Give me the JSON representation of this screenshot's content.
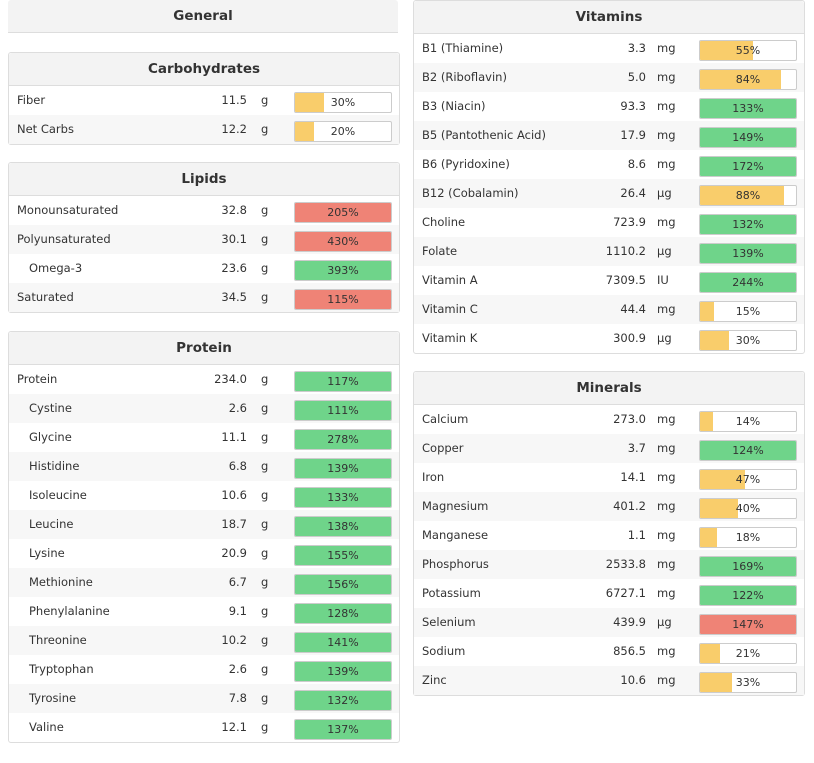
{
  "general": {
    "title": "General"
  },
  "left_sections": [
    {
      "id": "carbohydrates",
      "title": "Carbohydrates",
      "rows": [
        {
          "name": "Fiber",
          "amount": "11.5",
          "unit": "g",
          "pct": "30%",
          "level": 0.3,
          "color": "yellow",
          "indent": false
        },
        {
          "name": "Net Carbs",
          "amount": "12.2",
          "unit": "g",
          "pct": "20%",
          "level": 0.2,
          "color": "yellow",
          "indent": false
        }
      ]
    },
    {
      "id": "lipids",
      "title": "Lipids",
      "rows": [
        {
          "name": "Monounsaturated",
          "amount": "32.8",
          "unit": "g",
          "pct": "205%",
          "level": 1,
          "color": "red",
          "indent": false
        },
        {
          "name": "Polyunsaturated",
          "amount": "30.1",
          "unit": "g",
          "pct": "430%",
          "level": 1,
          "color": "red",
          "indent": false
        },
        {
          "name": "Omega-3",
          "amount": "23.6",
          "unit": "g",
          "pct": "393%",
          "level": 1,
          "color": "green",
          "indent": true
        },
        {
          "name": "Saturated",
          "amount": "34.5",
          "unit": "g",
          "pct": "115%",
          "level": 1,
          "color": "red",
          "indent": false
        }
      ]
    },
    {
      "id": "protein",
      "title": "Protein",
      "rows": [
        {
          "name": "Protein",
          "amount": "234.0",
          "unit": "g",
          "pct": "117%",
          "level": 1,
          "color": "green",
          "indent": false
        },
        {
          "name": "Cystine",
          "amount": "2.6",
          "unit": "g",
          "pct": "111%",
          "level": 1,
          "color": "green",
          "indent": true
        },
        {
          "name": "Glycine",
          "amount": "11.1",
          "unit": "g",
          "pct": "278%",
          "level": 1,
          "color": "green",
          "indent": true
        },
        {
          "name": "Histidine",
          "amount": "6.8",
          "unit": "g",
          "pct": "139%",
          "level": 1,
          "color": "green",
          "indent": true
        },
        {
          "name": "Isoleucine",
          "amount": "10.6",
          "unit": "g",
          "pct": "133%",
          "level": 1,
          "color": "green",
          "indent": true
        },
        {
          "name": "Leucine",
          "amount": "18.7",
          "unit": "g",
          "pct": "138%",
          "level": 1,
          "color": "green",
          "indent": true
        },
        {
          "name": "Lysine",
          "amount": "20.9",
          "unit": "g",
          "pct": "155%",
          "level": 1,
          "color": "green",
          "indent": true
        },
        {
          "name": "Methionine",
          "amount": "6.7",
          "unit": "g",
          "pct": "156%",
          "level": 1,
          "color": "green",
          "indent": true
        },
        {
          "name": "Phenylalanine",
          "amount": "9.1",
          "unit": "g",
          "pct": "128%",
          "level": 1,
          "color": "green",
          "indent": true
        },
        {
          "name": "Threonine",
          "amount": "10.2",
          "unit": "g",
          "pct": "141%",
          "level": 1,
          "color": "green",
          "indent": true
        },
        {
          "name": "Tryptophan",
          "amount": "2.6",
          "unit": "g",
          "pct": "139%",
          "level": 1,
          "color": "green",
          "indent": true
        },
        {
          "name": "Tyrosine",
          "amount": "7.8",
          "unit": "g",
          "pct": "132%",
          "level": 1,
          "color": "green",
          "indent": true
        },
        {
          "name": "Valine",
          "amount": "12.1",
          "unit": "g",
          "pct": "137%",
          "level": 1,
          "color": "green",
          "indent": true
        }
      ]
    }
  ],
  "right_sections": [
    {
      "id": "vitamins",
      "title": "Vitamins",
      "rows": [
        {
          "name": "B1 (Thiamine)",
          "amount": "3.3",
          "unit": "mg",
          "pct": "55%",
          "level": 0.55,
          "color": "yellow"
        },
        {
          "name": "B2 (Riboflavin)",
          "amount": "5.0",
          "unit": "mg",
          "pct": "84%",
          "level": 0.84,
          "color": "yellow"
        },
        {
          "name": "B3 (Niacin)",
          "amount": "93.3",
          "unit": "mg",
          "pct": "133%",
          "level": 1,
          "color": "green"
        },
        {
          "name": "B5 (Pantothenic Acid)",
          "amount": "17.9",
          "unit": "mg",
          "pct": "149%",
          "level": 1,
          "color": "green"
        },
        {
          "name": "B6 (Pyridoxine)",
          "amount": "8.6",
          "unit": "mg",
          "pct": "172%",
          "level": 1,
          "color": "green"
        },
        {
          "name": "B12 (Cobalamin)",
          "amount": "26.4",
          "unit": "µg",
          "pct": "88%",
          "level": 0.88,
          "color": "yellow"
        },
        {
          "name": "Choline",
          "amount": "723.9",
          "unit": "mg",
          "pct": "132%",
          "level": 1,
          "color": "green"
        },
        {
          "name": "Folate",
          "amount": "1110.2",
          "unit": "µg",
          "pct": "139%",
          "level": 1,
          "color": "green"
        },
        {
          "name": "Vitamin A",
          "amount": "7309.5",
          "unit": "IU",
          "pct": "244%",
          "level": 1,
          "color": "green"
        },
        {
          "name": "Vitamin C",
          "amount": "44.4",
          "unit": "mg",
          "pct": "15%",
          "level": 0.15,
          "color": "yellow"
        },
        {
          "name": "Vitamin K",
          "amount": "300.9",
          "unit": "µg",
          "pct": "30%",
          "level": 0.3,
          "color": "yellow"
        }
      ]
    },
    {
      "id": "minerals",
      "title": "Minerals",
      "rows": [
        {
          "name": "Calcium",
          "amount": "273.0",
          "unit": "mg",
          "pct": "14%",
          "level": 0.14,
          "color": "yellow"
        },
        {
          "name": "Copper",
          "amount": "3.7",
          "unit": "mg",
          "pct": "124%",
          "level": 1,
          "color": "green"
        },
        {
          "name": "Iron",
          "amount": "14.1",
          "unit": "mg",
          "pct": "47%",
          "level": 0.47,
          "color": "yellow"
        },
        {
          "name": "Magnesium",
          "amount": "401.2",
          "unit": "mg",
          "pct": "40%",
          "level": 0.4,
          "color": "yellow"
        },
        {
          "name": "Manganese",
          "amount": "1.1",
          "unit": "mg",
          "pct": "18%",
          "level": 0.18,
          "color": "yellow"
        },
        {
          "name": "Phosphorus",
          "amount": "2533.8",
          "unit": "mg",
          "pct": "169%",
          "level": 1,
          "color": "green"
        },
        {
          "name": "Potassium",
          "amount": "6727.1",
          "unit": "mg",
          "pct": "122%",
          "level": 1,
          "color": "green"
        },
        {
          "name": "Selenium",
          "amount": "439.9",
          "unit": "µg",
          "pct": "147%",
          "level": 1,
          "color": "red"
        },
        {
          "name": "Sodium",
          "amount": "856.5",
          "unit": "mg",
          "pct": "21%",
          "level": 0.21,
          "color": "yellow"
        },
        {
          "name": "Zinc",
          "amount": "10.6",
          "unit": "mg",
          "pct": "33%",
          "level": 0.33,
          "color": "yellow"
        }
      ]
    }
  ],
  "colors": {
    "yellow": "#f9cd6b",
    "green": "#6fd48a",
    "red": "#ef8376"
  }
}
